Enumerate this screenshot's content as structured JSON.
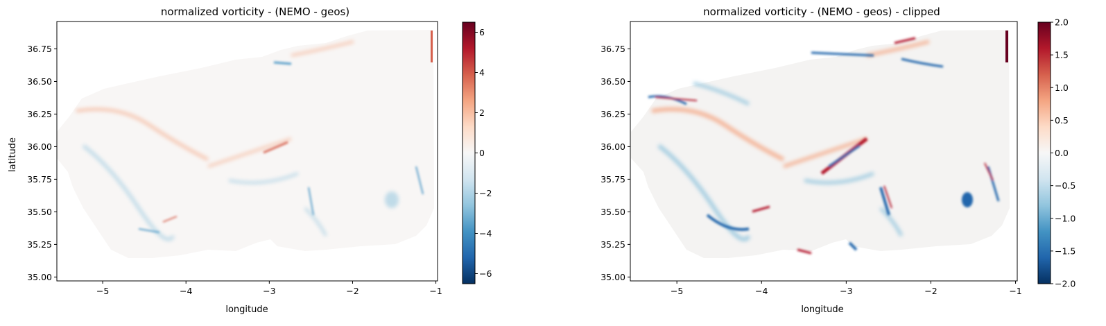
{
  "chart_data": [
    {
      "type": "heatmap",
      "title": "normalized vorticity - (NEMO - geos)",
      "xlabel": "longitude",
      "ylabel": "latitude",
      "xlim": [
        -5.55,
        -0.98
      ],
      "ylim": [
        34.97,
        36.96
      ],
      "x_ticks": [
        -5,
        -4,
        -3,
        -2,
        -1
      ],
      "x_tick_labels": [
        "−5",
        "−4",
        "−3",
        "−2",
        "−1"
      ],
      "y_ticks": [
        35.0,
        35.25,
        35.5,
        35.75,
        36.0,
        36.25,
        36.5,
        36.75
      ],
      "y_tick_labels": [
        "35.00",
        "35.25",
        "35.50",
        "35.75",
        "36.00",
        "36.25",
        "36.50",
        "36.75"
      ],
      "colorbar": {
        "colormap": "RdBu_r",
        "vmin": -6.5,
        "vmax": 6.5,
        "ticks": [
          -6,
          -4,
          -2,
          0,
          2,
          4,
          6
        ],
        "tick_labels": [
          "−6",
          "−4",
          "−2",
          "0",
          "2",
          "4",
          "6"
        ]
      },
      "value_range": [
        -6.5,
        6.5
      ],
      "clipped": false
    },
    {
      "type": "heatmap",
      "title": "normalized vorticity - (NEMO - geos) - clipped",
      "xlabel": "longitude",
      "ylabel": "",
      "xlim": [
        -5.55,
        -0.98
      ],
      "ylim": [
        34.97,
        36.96
      ],
      "x_ticks": [
        -5,
        -4,
        -3,
        -2,
        -1
      ],
      "x_tick_labels": [
        "−5",
        "−4",
        "−3",
        "−2",
        "−1"
      ],
      "y_ticks": [
        35.0,
        35.25,
        35.5,
        35.75,
        36.0,
        36.25,
        36.5,
        36.75
      ],
      "y_tick_labels": [
        "35.00",
        "35.25",
        "35.50",
        "35.75",
        "36.00",
        "36.25",
        "36.50",
        "36.75"
      ],
      "colorbar": {
        "colormap": "RdBu_r",
        "vmin": -2.0,
        "vmax": 2.0,
        "ticks": [
          -2.0,
          -1.5,
          -1.0,
          -0.5,
          0.0,
          0.5,
          1.0,
          1.5,
          2.0
        ],
        "tick_labels": [
          "−2.0",
          "−1.5",
          "−1.0",
          "−0.5",
          "0.0",
          "0.5",
          "1.0",
          "1.5",
          "2.0"
        ]
      },
      "value_range": [
        -2.0,
        2.0
      ],
      "clipped": true
    }
  ],
  "colors": {
    "cmap_stops": [
      "#053061",
      "#2166ac",
      "#4393c3",
      "#92c5de",
      "#d1e5f0",
      "#f7f7f7",
      "#fddbc7",
      "#f4a582",
      "#d6604d",
      "#b2182b",
      "#67001f"
    ],
    "axis": "#000000",
    "background": "#ffffff"
  }
}
